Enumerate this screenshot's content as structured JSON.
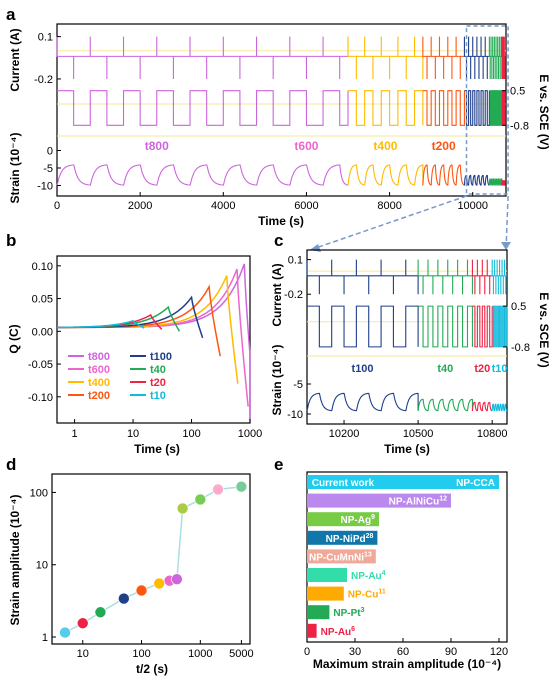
{
  "panels": {
    "a": "a",
    "b": "b",
    "c": "c",
    "d": "d",
    "e": "e"
  },
  "colors": {
    "t800": "#cc66dd",
    "t600": "#ee66cc",
    "t400": "#ffbb00",
    "t200": "#ff5511",
    "t100": "#1f3f8a",
    "t40": "#22aa55",
    "t20": "#ee2244",
    "t10": "#11bbdd",
    "ref_line": "#f5e89a",
    "zoom_box": "#7799cc"
  },
  "chart_data": [
    {
      "id": "a",
      "type": "line",
      "title": "",
      "xlabel": "Time (s)",
      "xlim": [
        0,
        10800
      ],
      "xticks": [
        0,
        2000,
        4000,
        6000,
        8000,
        10000
      ],
      "sub_axes": [
        {
          "name": "current",
          "ylabel": "Current (A)",
          "yticks": [
            0.1,
            -0.2
          ],
          "ylim": [
            -0.25,
            0.14
          ]
        },
        {
          "name": "potential",
          "ylabel": "E vs. SCE (V)",
          "yticks": [
            0.5,
            -0.8
          ],
          "ylim": [
            -0.9,
            0.6
          ]
        },
        {
          "name": "strain",
          "ylabel": "Strain (10⁻⁴)",
          "yticks": [
            0,
            -5,
            -10
          ],
          "ylim": [
            -13,
            3
          ]
        }
      ],
      "segments": [
        {
          "name": "t800",
          "label": "t800",
          "x_start": 0,
          "x_end": 7000,
          "half_period": 400,
          "strain_amp": 6.0
        },
        {
          "name": "t400",
          "label": "t400",
          "x_start": 7000,
          "x_end": 8800,
          "half_period": 200,
          "strain_amp": 6.0
        },
        {
          "name": "t200",
          "label": "t200",
          "x_start": 8800,
          "x_end": 9800,
          "half_period": 100,
          "strain_amp": 6.0
        },
        {
          "name": "t100",
          "label": "",
          "x_start": 9800,
          "x_end": 10400,
          "half_period": 50,
          "strain_amp": 3.0
        },
        {
          "name": "t40",
          "label": "",
          "x_start": 10400,
          "x_end": 10700,
          "half_period": 20,
          "strain_amp": 2.0
        },
        {
          "name": "t20",
          "label": "",
          "x_start": 10700,
          "x_end": 10780,
          "half_period": 10,
          "strain_amp": 1.5
        }
      ],
      "extra_labels": [
        {
          "text": "t600",
          "x": 6000
        }
      ],
      "zoom_region": [
        9850,
        10850
      ]
    },
    {
      "id": "b",
      "type": "line",
      "xlabel": "Time (s)",
      "ylabel": "Q (C)",
      "xscale": "log",
      "xlim": [
        0.5,
        1000
      ],
      "ylim": [
        -0.14,
        0.115
      ],
      "xticks": [
        1,
        10,
        100,
        1000
      ],
      "xtick_labels": [
        "1",
        "10",
        "100",
        "1000"
      ],
      "yticks": [
        0.1,
        0.05,
        0.0,
        -0.05,
        -0.1
      ],
      "ytick_labels": [
        "0.10",
        "0.05",
        "0.00",
        "-0.05",
        "-0.10"
      ],
      "series": [
        {
          "name": "t800",
          "t": 800,
          "peak": 0.103,
          "end": -0.135
        },
        {
          "name": "t600",
          "t": 600,
          "peak": 0.095,
          "end": -0.115
        },
        {
          "name": "t400",
          "t": 400,
          "peak": 0.085,
          "end": -0.08
        },
        {
          "name": "t200",
          "t": 200,
          "peak": 0.068,
          "end": -0.038
        },
        {
          "name": "t100",
          "t": 100,
          "peak": 0.052,
          "end": -0.01
        },
        {
          "name": "t40",
          "t": 40,
          "peak": 0.037,
          "end": 0.0
        },
        {
          "name": "t20",
          "t": 20,
          "peak": 0.025,
          "end": 0.003
        },
        {
          "name": "t10",
          "t": 10,
          "peak": 0.016,
          "end": 0.005
        }
      ],
      "legend": [
        [
          "t800",
          "t100"
        ],
        [
          "t600",
          "t40"
        ],
        [
          "t400",
          "t20"
        ],
        [
          "t200",
          "t10"
        ]
      ]
    },
    {
      "id": "c",
      "type": "line",
      "xlabel": "Time (s)",
      "xlim": [
        10050,
        10860
      ],
      "xticks": [
        10200,
        10500,
        10800
      ],
      "sub_axes": [
        {
          "name": "current",
          "ylabel": "Current (A)",
          "yticks": [
            0.1,
            -0.2
          ],
          "ylim": [
            -0.25,
            0.14
          ]
        },
        {
          "name": "potential",
          "ylabel": "E vs. SCE (V)",
          "yticks": [
            0.5,
            -0.8
          ],
          "ylim": [
            -0.9,
            0.6
          ]
        },
        {
          "name": "strain",
          "ylabel": "Strain (10⁻⁴)",
          "yticks": [
            -5,
            -10
          ],
          "ylim": [
            -11,
            -1
          ]
        }
      ],
      "segments": [
        {
          "name": "t100",
          "label": "t100",
          "x_start": 10050,
          "x_end": 10500,
          "half_period": 50,
          "strain_amp": 3.0
        },
        {
          "name": "t40",
          "label": "t40",
          "x_start": 10500,
          "x_end": 10720,
          "half_period": 20,
          "strain_amp": 2.0
        },
        {
          "name": "t20",
          "label": "t20",
          "x_start": 10720,
          "x_end": 10800,
          "half_period": 10,
          "strain_amp": 1.5
        },
        {
          "name": "t10",
          "label": "t10",
          "x_start": 10800,
          "x_end": 10860,
          "half_period": 5,
          "strain_amp": 1.2
        }
      ]
    },
    {
      "id": "d",
      "type": "scatter",
      "xlabel": "t/2 (s)",
      "ylabel": "Strain amplitude (10⁻⁴)",
      "xscale": "log",
      "yscale": "log",
      "xlim": [
        3,
        7000
      ],
      "ylim": [
        0.8,
        180
      ],
      "xticks": [
        10,
        100,
        1000,
        5000
      ],
      "xtick_labels": [
        "10",
        "100",
        "1000",
        "5000"
      ],
      "yticks": [
        1,
        10,
        100
      ],
      "ytick_labels": [
        "1",
        "10",
        "100"
      ],
      "points": [
        {
          "x": 5,
          "y": 1.15,
          "color": "#55ccee"
        },
        {
          "x": 10,
          "y": 1.55,
          "color": "#ee2244"
        },
        {
          "x": 20,
          "y": 2.2,
          "color": "#22aa55"
        },
        {
          "x": 50,
          "y": 3.4,
          "color": "#1f3f8a"
        },
        {
          "x": 100,
          "y": 4.4,
          "color": "#ff5511"
        },
        {
          "x": 200,
          "y": 5.5,
          "color": "#ffbb00"
        },
        {
          "x": 300,
          "y": 6.0,
          "color": "#ee66cc"
        },
        {
          "x": 400,
          "y": 6.3,
          "color": "#cc66dd"
        },
        {
          "x": 500,
          "y": 60,
          "color": "#aacc44"
        },
        {
          "x": 1000,
          "y": 80,
          "color": "#77cc55"
        },
        {
          "x": 2000,
          "y": 110,
          "color": "#ffaacc"
        },
        {
          "x": 5000,
          "y": 120,
          "color": "#77cc99"
        }
      ]
    },
    {
      "id": "e",
      "type": "bar",
      "orientation": "horizontal",
      "xlabel": "Maximum strain amplitude (10⁻⁴)",
      "xlim": [
        0,
        125
      ],
      "xticks": [
        0,
        30,
        60,
        90,
        120
      ],
      "categories": [
        "NP-CCA",
        "NP-AlNiCu",
        "NP-Ag",
        "NP-NiPd",
        "NP-CuMnNi",
        "NP-Au",
        "NP-Cu",
        "NP-Pt",
        "NP-Au"
      ],
      "refs": [
        "",
        "12",
        "9",
        "28",
        "13",
        "4",
        "11",
        "3",
        "6"
      ],
      "values": [
        120,
        90,
        45,
        44,
        43,
        25,
        23,
        14,
        6
      ],
      "bar_colors": [
        "#22ccee",
        "#bb88ee",
        "#77cc44",
        "#1177aa",
        "#f0a898",
        "#33ddaa",
        "#ffaa00",
        "#22aa55",
        "#ee2244"
      ],
      "label_colors": [
        "#ffffff",
        "#ffffff",
        "#ffffff",
        "#ffffff",
        "#ffffff",
        "#33ddaa",
        "#ffaa00",
        "#22aa55",
        "#ee2244"
      ],
      "highlight_label": "Current work"
    }
  ]
}
